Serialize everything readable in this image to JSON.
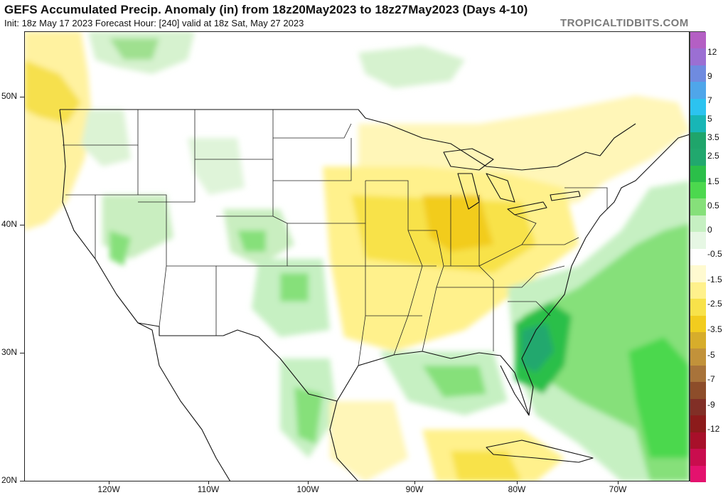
{
  "header": {
    "title": "GEFS Accumulated Precip. Anomaly (in) from 18z20May2023 to 18z27May2023 (Days 4-10)",
    "subtitle": "Init: 18z May 17 2023   Forecast Hour: [240]   valid at 18z Sat, May 27 2023",
    "brand": "TROPICALTIDBITS.COM"
  },
  "axes": {
    "latitude_labels": [
      "50N",
      "40N",
      "30N",
      "20N"
    ],
    "longitude_labels": [
      "120W",
      "110W",
      "100W",
      "90W",
      "80W",
      "70W"
    ]
  },
  "legend": {
    "labels": [
      "12",
      "9",
      "7",
      "5",
      "3.5",
      "2.5",
      "1.5",
      "0.5",
      "0",
      "-0.5",
      "-1.5",
      "-2.5",
      "-3.5",
      "-5",
      "-7",
      "-9",
      "-12"
    ],
    "colors": [
      "#b45fc4",
      "#9b6fd3",
      "#6f8be0",
      "#4fa6ea",
      "#2cc3f0",
      "#18b6b6",
      "#1fa56b",
      "#21a86e",
      "#2bbf49",
      "#4cd84e",
      "#86e07a",
      "#c6f0c2",
      "#e6f7e4",
      "#ffffff",
      "#fffad0",
      "#fff18c",
      "#f8e24a",
      "#f2cc1e",
      "#d7ad2b",
      "#c2923a",
      "#a8733a",
      "#8d4d2a",
      "#812f26",
      "#8c1b1b",
      "#a8102a",
      "#c90d4e",
      "#e4126e"
    ]
  },
  "map": {
    "variable": "precipitation anomaly",
    "units": "in",
    "projection": "lat-lon",
    "dominant_features": {
      "wet_anomaly": "Southeast US coast / western Atlantic off Florida and Carolinas",
      "dry_anomaly": "Ohio Valley, Mid-Mississippi Valley, Southeast interior"
    }
  }
}
